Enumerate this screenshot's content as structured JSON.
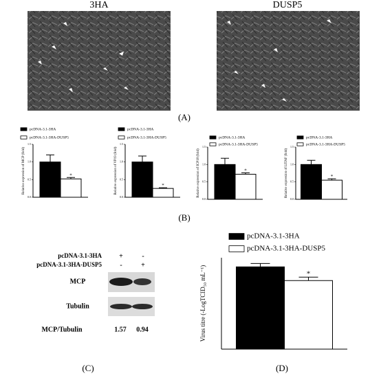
{
  "panel_a": {
    "images": [
      {
        "label": "3HA"
      },
      {
        "label": "DUSP5"
      }
    ],
    "caption": "(A)"
  },
  "panel_b": {
    "caption": "(B)"
  },
  "panel_c": {
    "rows": [
      {
        "label": "pcDNA-3.1-3HA",
        "marks": [
          "+",
          "-"
        ]
      },
      {
        "label": "pcDNA-3.1-3HA-DUSP5",
        "marks": [
          "-",
          "+"
        ]
      }
    ],
    "bands": [
      "MCP",
      "Tubulin"
    ],
    "ratio": {
      "label": "MCP/Tubulin",
      "values": [
        1.57,
        0.94
      ]
    },
    "caption": "(C)"
  },
  "panel_d": {
    "caption": "(D)"
  },
  "chart_data": [
    {
      "type": "bar",
      "ylabel": "Relative expression of MCP (fold)",
      "categories": [
        null
      ],
      "series": [
        {
          "name": "pcDNA-3.1-3HA",
          "color": "#000000",
          "values": [
            1.0
          ],
          "errors": [
            0.2
          ]
        },
        {
          "name": "pcDNA-3.1-3HA-DUSP5",
          "color": "#ffffff",
          "values": [
            0.52
          ],
          "errors": [
            0.04
          ],
          "annotation": "*"
        }
      ],
      "ylim": [
        0,
        1.5
      ],
      "yticks": [
        {
          "value": 0,
          "label": "0.0"
        },
        {
          "value": 0.5,
          "label": "0.5"
        },
        {
          "value": 1,
          "label": "1.0"
        },
        {
          "value": 1.5,
          "label": "1.5"
        }
      ]
    },
    {
      "type": "bar",
      "ylabel": "Relative expression of VP19 (fold)",
      "categories": [
        null
      ],
      "series": [
        {
          "name": "pcDNA-3.1-3HA",
          "color": "#000000",
          "values": [
            1.0
          ],
          "errors": [
            0.17
          ]
        },
        {
          "name": "pcDNA-3.1-3HA-DUSP5",
          "color": "#ffffff",
          "values": [
            0.25
          ],
          "errors": [
            0.02
          ],
          "annotation": "*"
        }
      ],
      "ylim": [
        0,
        1.5
      ],
      "yticks": [
        {
          "value": 0,
          "label": "0.0"
        },
        {
          "value": 0.5,
          "label": "0.5"
        },
        {
          "value": 1,
          "label": "1.0"
        },
        {
          "value": 1.5,
          "label": "1.5"
        }
      ]
    },
    {
      "type": "bar",
      "ylabel": "Relative expression of ICP18 (fold)",
      "categories": [
        null
      ],
      "series": [
        {
          "name": "pcDNA-3.1-3HA",
          "color": "#000000",
          "values": [
            1.0
          ],
          "errors": [
            0.18
          ]
        },
        {
          "name": "pcDNA-3.1-3HA-DUSP5",
          "color": "#ffffff",
          "values": [
            0.72
          ],
          "errors": [
            0.04
          ],
          "annotation": "*"
        }
      ],
      "ylim": [
        0,
        1.5
      ],
      "yticks": [
        {
          "value": 0,
          "label": "0.0"
        },
        {
          "value": 0.5,
          "label": "0.5"
        },
        {
          "value": 1,
          "label": "1.0"
        },
        {
          "value": 1.5,
          "label": "1.5"
        }
      ]
    },
    {
      "type": "bar",
      "ylabel": "Relative expression of LITAF (fold)",
      "categories": [
        null
      ],
      "series": [
        {
          "name": "pcDNA-3.1-3HA",
          "color": "#000000",
          "values": [
            1.0
          ],
          "errors": [
            0.12
          ]
        },
        {
          "name": "pcDNA-3.1-3HA-DUSP5",
          "color": "#ffffff",
          "values": [
            0.55
          ],
          "errors": [
            0.04
          ],
          "annotation": "*"
        }
      ],
      "ylim": [
        0,
        1.5
      ],
      "yticks": [
        {
          "value": 0,
          "label": "0.0"
        },
        {
          "value": 0.5,
          "label": "0.5"
        },
        {
          "value": 1,
          "label": "1.0"
        },
        {
          "value": 1.5,
          "label": "1.5"
        }
      ]
    },
    {
      "type": "bar",
      "ylabel": "Virus titre (-LogTCID₅₀ mL⁻¹)",
      "categories": [
        null
      ],
      "series": [
        {
          "name": "pcDNA-3.1-3HA",
          "color": "#000000",
          "values": [
            7.2
          ],
          "errors": [
            0.3
          ]
        },
        {
          "name": "pcDNA-3.1-3HA-DUSP5",
          "color": "#ffffff",
          "values": [
            6.0
          ],
          "errors": [
            0.3
          ],
          "annotation": "*"
        }
      ],
      "ylim": [
        0,
        8
      ]
    }
  ]
}
